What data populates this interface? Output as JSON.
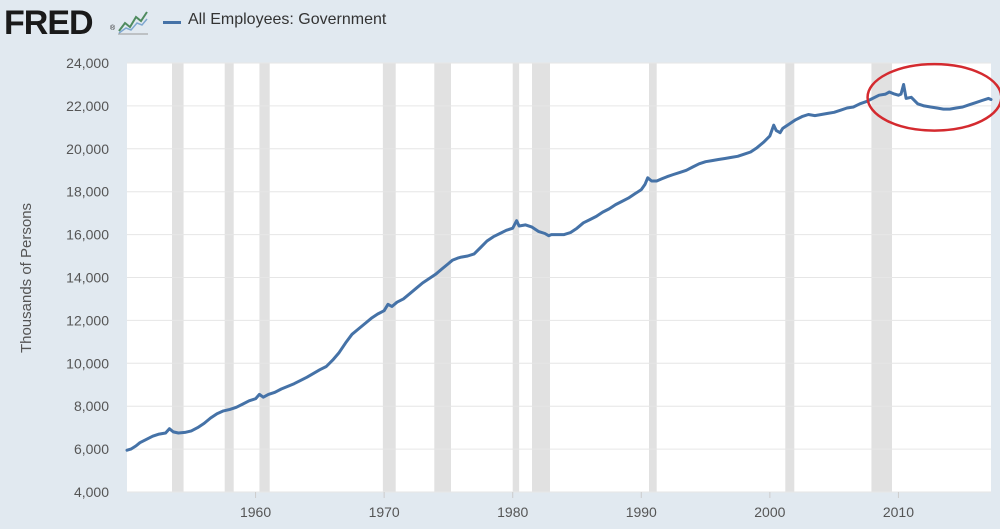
{
  "header": {
    "logo": "FRED",
    "logo_mark": "®",
    "graph_icon": "fred-graph-icon"
  },
  "colors": {
    "series": "#4572a7",
    "recession": "#e1e1e1",
    "plot_background": "#ffffff",
    "page_background": "#e1e9f0",
    "annotation": "#d42a2f"
  },
  "chart_data": {
    "type": "line",
    "ylabel": "Thousands of Persons",
    "xlabel": "",
    "title": "",
    "xlim": [
      1950.0,
      2017.2
    ],
    "ylim": [
      4000,
      24000
    ],
    "x_ticks": [
      1960,
      1970,
      1980,
      1990,
      2000,
      2010
    ],
    "y_ticks": [
      4000,
      6000,
      8000,
      10000,
      12000,
      14000,
      16000,
      18000,
      20000,
      22000,
      24000
    ],
    "x_tick_labels": [
      "1960",
      "1970",
      "1980",
      "1990",
      "2000",
      "2010"
    ],
    "y_tick_labels": [
      "4,000",
      "6,000",
      "8,000",
      "10,000",
      "12,000",
      "14,000",
      "16,000",
      "18,000",
      "20,000",
      "22,000",
      "24,000"
    ],
    "legend": "top-left",
    "recessions": [
      [
        1953.5,
        1954.4
      ],
      [
        1957.6,
        1958.3
      ],
      [
        1960.3,
        1961.1
      ],
      [
        1969.9,
        1970.9
      ],
      [
        1973.9,
        1975.2
      ],
      [
        1980.0,
        1980.5
      ],
      [
        1981.5,
        1982.9
      ],
      [
        1990.6,
        1991.2
      ],
      [
        2001.2,
        2001.9
      ],
      [
        2007.9,
        2009.5
      ]
    ],
    "annotation": {
      "type": "ellipse",
      "center": [
        2012.8,
        22400
      ],
      "radii": [
        5.2,
        1550
      ]
    },
    "series": [
      {
        "name": "All Employees: Government",
        "points": [
          [
            1950.0,
            5950
          ],
          [
            1950.3,
            6000
          ],
          [
            1950.7,
            6150
          ],
          [
            1951.0,
            6300
          ],
          [
            1951.5,
            6450
          ],
          [
            1952.0,
            6600
          ],
          [
            1952.5,
            6700
          ],
          [
            1953.0,
            6750
          ],
          [
            1953.3,
            6950
          ],
          [
            1953.6,
            6800
          ],
          [
            1954.0,
            6750
          ],
          [
            1954.5,
            6780
          ],
          [
            1955.0,
            6850
          ],
          [
            1955.5,
            7000
          ],
          [
            1956.0,
            7200
          ],
          [
            1956.5,
            7450
          ],
          [
            1957.0,
            7650
          ],
          [
            1957.5,
            7780
          ],
          [
            1958.0,
            7850
          ],
          [
            1958.5,
            7950
          ],
          [
            1959.0,
            8100
          ],
          [
            1959.5,
            8250
          ],
          [
            1960.0,
            8350
          ],
          [
            1960.3,
            8550
          ],
          [
            1960.6,
            8420
          ],
          [
            1961.0,
            8550
          ],
          [
            1961.5,
            8650
          ],
          [
            1962.0,
            8800
          ],
          [
            1963.0,
            9050
          ],
          [
            1964.0,
            9350
          ],
          [
            1965.0,
            9700
          ],
          [
            1965.5,
            9850
          ],
          [
            1966.0,
            10150
          ],
          [
            1966.5,
            10500
          ],
          [
            1967.0,
            10950
          ],
          [
            1967.5,
            11350
          ],
          [
            1968.0,
            11600
          ],
          [
            1968.5,
            11850
          ],
          [
            1969.0,
            12100
          ],
          [
            1969.5,
            12300
          ],
          [
            1970.0,
            12450
          ],
          [
            1970.3,
            12750
          ],
          [
            1970.6,
            12650
          ],
          [
            1971.0,
            12850
          ],
          [
            1971.5,
            13000
          ],
          [
            1972.0,
            13250
          ],
          [
            1972.5,
            13500
          ],
          [
            1973.0,
            13750
          ],
          [
            1973.5,
            13950
          ],
          [
            1974.0,
            14150
          ],
          [
            1974.5,
            14400
          ],
          [
            1975.0,
            14650
          ],
          [
            1975.3,
            14800
          ],
          [
            1975.7,
            14900
          ],
          [
            1976.0,
            14950
          ],
          [
            1976.5,
            15000
          ],
          [
            1977.0,
            15100
          ],
          [
            1977.5,
            15400
          ],
          [
            1978.0,
            15700
          ],
          [
            1978.5,
            15900
          ],
          [
            1979.0,
            16050
          ],
          [
            1979.5,
            16200
          ],
          [
            1980.0,
            16300
          ],
          [
            1980.3,
            16650
          ],
          [
            1980.5,
            16400
          ],
          [
            1981.0,
            16450
          ],
          [
            1981.5,
            16350
          ],
          [
            1982.0,
            16150
          ],
          [
            1982.5,
            16050
          ],
          [
            1982.8,
            15950
          ],
          [
            1983.0,
            16000
          ],
          [
            1983.5,
            16000
          ],
          [
            1984.0,
            16000
          ],
          [
            1984.5,
            16100
          ],
          [
            1985.0,
            16300
          ],
          [
            1985.5,
            16550
          ],
          [
            1986.0,
            16700
          ],
          [
            1986.5,
            16850
          ],
          [
            1987.0,
            17050
          ],
          [
            1987.5,
            17200
          ],
          [
            1988.0,
            17400
          ],
          [
            1988.5,
            17550
          ],
          [
            1989.0,
            17700
          ],
          [
            1989.5,
            17900
          ],
          [
            1990.0,
            18100
          ],
          [
            1990.3,
            18350
          ],
          [
            1990.5,
            18650
          ],
          [
            1990.8,
            18500
          ],
          [
            1991.2,
            18500
          ],
          [
            1991.6,
            18600
          ],
          [
            1992.0,
            18700
          ],
          [
            1992.5,
            18800
          ],
          [
            1993.0,
            18900
          ],
          [
            1993.5,
            19000
          ],
          [
            1994.0,
            19150
          ],
          [
            1994.5,
            19300
          ],
          [
            1995.0,
            19400
          ],
          [
            1995.5,
            19450
          ],
          [
            1996.0,
            19500
          ],
          [
            1996.5,
            19550
          ],
          [
            1997.0,
            19600
          ],
          [
            1997.5,
            19650
          ],
          [
            1998.0,
            19750
          ],
          [
            1998.5,
            19850
          ],
          [
            1999.0,
            20050
          ],
          [
            1999.5,
            20300
          ],
          [
            2000.0,
            20600
          ],
          [
            2000.3,
            21100
          ],
          [
            2000.5,
            20850
          ],
          [
            2000.8,
            20750
          ],
          [
            2001.0,
            20950
          ],
          [
            2001.5,
            21150
          ],
          [
            2002.0,
            21350
          ],
          [
            2002.5,
            21500
          ],
          [
            2003.0,
            21600
          ],
          [
            2003.5,
            21550
          ],
          [
            2004.0,
            21600
          ],
          [
            2004.5,
            21650
          ],
          [
            2005.0,
            21700
          ],
          [
            2005.5,
            21800
          ],
          [
            2006.0,
            21900
          ],
          [
            2006.5,
            21950
          ],
          [
            2007.0,
            22100
          ],
          [
            2007.5,
            22200
          ],
          [
            2008.0,
            22350
          ],
          [
            2008.5,
            22500
          ],
          [
            2009.0,
            22550
          ],
          [
            2009.3,
            22650
          ],
          [
            2009.7,
            22550
          ],
          [
            2010.0,
            22500
          ],
          [
            2010.2,
            22550
          ],
          [
            2010.4,
            23000
          ],
          [
            2010.6,
            22350
          ],
          [
            2011.0,
            22400
          ],
          [
            2011.5,
            22100
          ],
          [
            2012.0,
            22000
          ],
          [
            2012.5,
            21950
          ],
          [
            2013.0,
            21900
          ],
          [
            2013.5,
            21850
          ],
          [
            2014.0,
            21850
          ],
          [
            2014.5,
            21900
          ],
          [
            2015.0,
            21950
          ],
          [
            2015.5,
            22050
          ],
          [
            2016.0,
            22150
          ],
          [
            2016.5,
            22250
          ],
          [
            2017.0,
            22350
          ],
          [
            2017.2,
            22300
          ]
        ]
      }
    ]
  }
}
